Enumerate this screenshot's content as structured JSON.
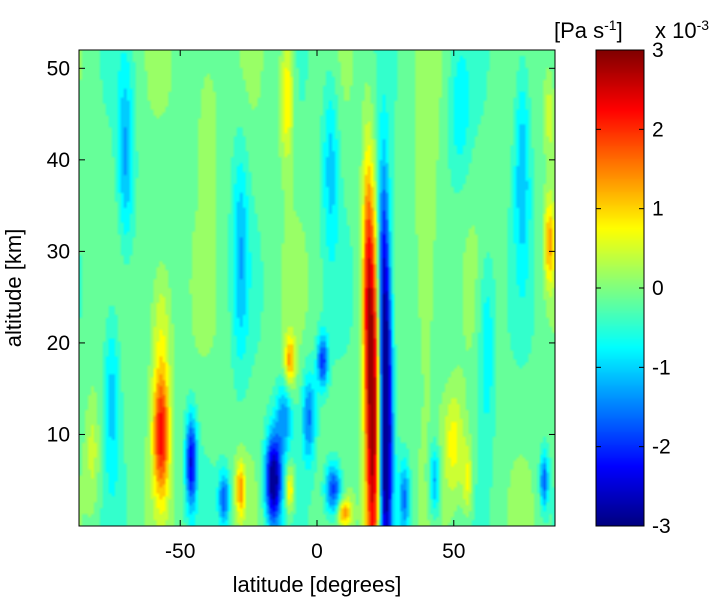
{
  "chart_data": {
    "type": "heatmap",
    "title": "",
    "xlabel": "latitude [degrees]",
    "ylabel": "altitude [km]",
    "xlim": [
      -87,
      87
    ],
    "ylim": [
      0,
      52
    ],
    "x_ticks": [
      -50,
      0,
      50
    ],
    "y_ticks": [
      10,
      20,
      30,
      40,
      50
    ],
    "colorbar": {
      "unit_label": "[Pa s",
      "unit_exponent": "-1",
      "unit_close": "]",
      "scale_label": "x 10",
      "scale_exponent": "-3",
      "range": [
        -3,
        3
      ],
      "ticks": [
        3,
        2,
        1,
        0,
        -1,
        -2,
        -3
      ],
      "colormap": "jet"
    },
    "grid": false,
    "background_value": -0.15,
    "features": [
      {
        "lat": 20.5,
        "alt": 10,
        "value": 3.2,
        "w": 2.8,
        "h": 20
      },
      {
        "lat": 18.5,
        "alt": 28,
        "value": 1.6,
        "w": 2.0,
        "h": 14
      },
      {
        "lat": 25.0,
        "alt": 12,
        "value": -3.4,
        "w": 2.5,
        "h": 19
      },
      {
        "lat": 24.0,
        "alt": 30,
        "value": -1.3,
        "w": 2.0,
        "h": 12
      },
      {
        "lat": -57.0,
        "alt": 10,
        "value": 2.3,
        "w": 3.0,
        "h": 7
      },
      {
        "lat": -57.0,
        "alt": 22,
        "value": 0.8,
        "w": 4.0,
        "h": 8
      },
      {
        "lat": -46.0,
        "alt": 7,
        "value": -2.2,
        "w": 2.0,
        "h": 5
      },
      {
        "lat": -34.0,
        "alt": 3,
        "value": -1.6,
        "w": 2.0,
        "h": 3
      },
      {
        "lat": -28.0,
        "alt": 4,
        "value": 1.4,
        "w": 1.8,
        "h": 3
      },
      {
        "lat": -16.0,
        "alt": 5,
        "value": -3.0,
        "w": 3.0,
        "h": 5
      },
      {
        "lat": -10.0,
        "alt": 4,
        "value": 1.3,
        "w": 1.5,
        "h": 2.5
      },
      {
        "lat": -10.0,
        "alt": 18,
        "value": 1.4,
        "w": 2.0,
        "h": 3
      },
      {
        "lat": -3.0,
        "alt": 12,
        "value": -1.4,
        "w": 2.5,
        "h": 5
      },
      {
        "lat": 2.0,
        "alt": 18,
        "value": -1.8,
        "w": 2.0,
        "h": 3
      },
      {
        "lat": 6.0,
        "alt": 4,
        "value": -1.9,
        "w": 3.0,
        "h": 3
      },
      {
        "lat": 10.0,
        "alt": 1.5,
        "value": 1.4,
        "w": 2.5,
        "h": 1.5
      },
      {
        "lat": -12.0,
        "alt": 12,
        "value": -1.2,
        "w": 3.0,
        "h": 4
      },
      {
        "lat": 32.0,
        "alt": 3,
        "value": -1.4,
        "w": 2.0,
        "h": 4
      },
      {
        "lat": 43.0,
        "alt": 5,
        "value": -1.3,
        "w": 2.0,
        "h": 4
      },
      {
        "lat": 50.0,
        "alt": 9,
        "value": 0.9,
        "w": 4.0,
        "h": 6
      },
      {
        "lat": 55.0,
        "alt": 5,
        "value": 0.9,
        "w": 2.0,
        "h": 4
      },
      {
        "lat": 62.0,
        "alt": 20,
        "value": -0.8,
        "w": 3.0,
        "h": 10
      },
      {
        "lat": 83.0,
        "alt": 5,
        "value": -1.6,
        "w": 1.5,
        "h": 3
      },
      {
        "lat": 85.0,
        "alt": 31,
        "value": 1.4,
        "w": 2.0,
        "h": 5
      },
      {
        "lat": 85.0,
        "alt": 45,
        "value": 0.7,
        "w": 2.0,
        "h": 5
      },
      {
        "lat": -70.0,
        "alt": 40,
        "value": -1.1,
        "w": 3.0,
        "h": 10
      },
      {
        "lat": -75.0,
        "alt": 15,
        "value": -0.9,
        "w": 3.0,
        "h": 10
      },
      {
        "lat": -82.0,
        "alt": 8,
        "value": 0.6,
        "w": 2.5,
        "h": 6
      },
      {
        "lat": -11.0,
        "alt": 47,
        "value": 1.2,
        "w": 2.5,
        "h": 7
      },
      {
        "lat": -28.0,
        "alt": 30,
        "value": -0.9,
        "w": 3.0,
        "h": 12
      },
      {
        "lat": 5.0,
        "alt": 40,
        "value": -0.9,
        "w": 3.0,
        "h": 10
      },
      {
        "lat": 40.0,
        "alt": 30,
        "value": 0.6,
        "w": 4.0,
        "h": 15
      },
      {
        "lat": 52.0,
        "alt": 45,
        "value": -0.6,
        "w": 4.0,
        "h": 8
      },
      {
        "lat": 75.0,
        "alt": 40,
        "value": -1.0,
        "w": 3.0,
        "h": 12
      },
      {
        "lat": -40.0,
        "alt": 45,
        "value": 0.5,
        "w": 4.0,
        "h": 8
      }
    ]
  }
}
